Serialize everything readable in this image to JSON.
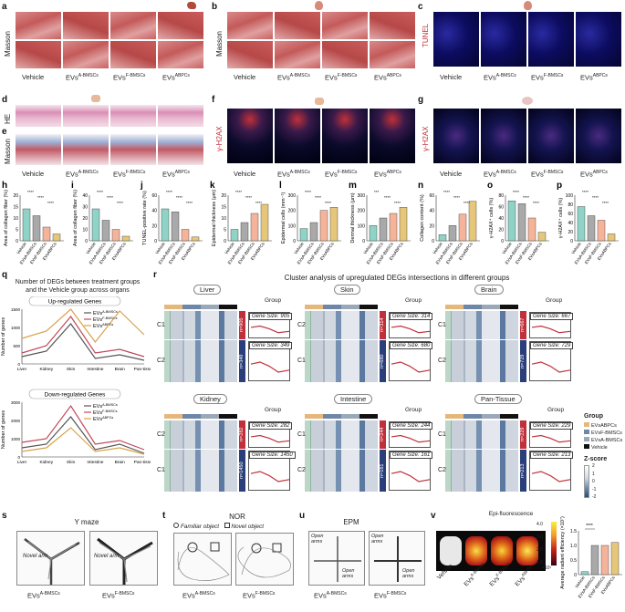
{
  "panels": {
    "a": "a",
    "b": "b",
    "c": "c",
    "d": "d",
    "e": "e",
    "f": "f",
    "g": "g",
    "h": "h",
    "i": "i",
    "j": "j",
    "k": "k",
    "l": "l",
    "m": "m",
    "n": "n",
    "o": "o",
    "p": "p",
    "q": "q",
    "r": "r",
    "s": "s",
    "t": "t",
    "u": "u",
    "v": "v"
  },
  "stain_labels": {
    "masson": "Masson",
    "tunel": "TUNEL",
    "he": "HE",
    "h2ax": "γ-H2AX"
  },
  "groups": [
    "Vehicle",
    "EVsA-BMSCs",
    "EVsF-BMSCs",
    "EVsABPCs"
  ],
  "group_display": [
    {
      "base": "Vehicle",
      "sup": ""
    },
    {
      "base": "EVs",
      "sup": "A-BMSCs"
    },
    {
      "base": "EVs",
      "sup": "F-BMSCs"
    },
    {
      "base": "EVs",
      "sup": "ABPCs"
    }
  ],
  "bar_panels": [
    {
      "id": "h",
      "ylabel": "Area of collagen fiber (%)",
      "values": [
        14,
        11,
        6,
        3
      ],
      "ymax": 20,
      "ticks": [
        "0",
        "5",
        "10",
        "15",
        "20"
      ],
      "sig": [
        "****",
        "****",
        "****"
      ]
    },
    {
      "id": "i",
      "ylabel": "Area of collagen fiber (%)",
      "values": [
        28,
        18,
        10,
        4
      ],
      "ymax": 40,
      "ticks": [
        "0",
        "10",
        "20",
        "30",
        "40"
      ],
      "sig": [
        "****",
        "****",
        "****"
      ]
    },
    {
      "id": "j",
      "ylabel": "TUNEL-positive rate (%)",
      "values": [
        42,
        38,
        15,
        5
      ],
      "ymax": 60,
      "ticks": [
        "0",
        "20",
        "40",
        "60"
      ],
      "sig": [
        "****",
        "****",
        "****"
      ]
    },
    {
      "id": "k",
      "ylabel": "Epidermal thickness (μm)",
      "values": [
        5,
        8,
        12,
        16
      ],
      "ymax": 20,
      "ticks": [
        "0",
        "5",
        "10",
        "15",
        "20"
      ],
      "sig": [
        "****",
        "****",
        "****"
      ]
    },
    {
      "id": "l",
      "ylabel": "Epidermal cells (mm⁻¹)",
      "values": [
        80,
        120,
        200,
        220
      ],
      "ymax": 300,
      "ticks": [
        "0",
        "100",
        "200",
        "300"
      ],
      "sig": [
        "****",
        "****",
        "****"
      ]
    },
    {
      "id": "m",
      "ylabel": "Dermal thickness (μm)",
      "values": [
        100,
        150,
        180,
        220
      ],
      "ymax": 300,
      "ticks": [
        "0",
        "100",
        "200",
        "300"
      ],
      "sig": [
        "***",
        "****",
        "****"
      ]
    },
    {
      "id": "n",
      "ylabel": "Collagen content (%)",
      "values": [
        8,
        20,
        35,
        52
      ],
      "ymax": 60,
      "ticks": [
        "0",
        "20",
        "40",
        "60"
      ],
      "sig": [
        "****",
        "****",
        "****"
      ]
    },
    {
      "id": "o",
      "ylabel": "γ-H2AX⁺ cells (%)",
      "values": [
        70,
        65,
        40,
        15
      ],
      "ymax": 80,
      "ticks": [
        "0",
        "20",
        "40",
        "60",
        "80"
      ],
      "sig": [
        "****",
        "****",
        "****"
      ]
    },
    {
      "id": "p",
      "ylabel": "γ-H2AX⁺ cells (%)",
      "values": [
        75,
        55,
        45,
        15
      ],
      "ymax": 100,
      "ticks": [
        "0",
        "20",
        "40",
        "60",
        "80",
        "100"
      ],
      "sig": [
        "****",
        "****",
        "****"
      ]
    }
  ],
  "bar_colors": [
    "#8fd3c7",
    "#a9a9a9",
    "#f5b49a",
    "#e6c77a"
  ],
  "q": {
    "title_line1": "Number of DEGs between treatment groups",
    "title_line2": "and the Vehicle group across organs",
    "up_title": "Up-regulated Genes",
    "down_title": "Down-regulated Genes",
    "ylabel": "Number of genes",
    "organs": [
      "Liver",
      "Kidney",
      "Skin",
      "Intestine",
      "Brain",
      "Pan-tissue"
    ],
    "up_ticks": [
      "0",
      "500",
      "1000",
      "1500"
    ],
    "down_ticks": [
      "0",
      "1000",
      "2000",
      "3000"
    ],
    "up_series": [
      {
        "name": "EVsA-BMSCs",
        "values": [
          200,
          350,
          1100,
          150,
          250,
          100
        ]
      },
      {
        "name": "EVsF-BMSCs",
        "values": [
          300,
          500,
          1300,
          300,
          400,
          200
        ]
      },
      {
        "name": "EVsABPCs",
        "values": [
          700,
          900,
          1500,
          600,
          1450,
          800
        ]
      }
    ],
    "down_series": [
      {
        "name": "EVsA-BMSCs",
        "values": [
          500,
          700,
          2200,
          400,
          700,
          200
        ]
      },
      {
        "name": "EVsF-BMSCs",
        "values": [
          800,
          1000,
          2800,
          700,
          900,
          400
        ]
      },
      {
        "name": "EVsABPCs",
        "values": [
          300,
          500,
          1600,
          300,
          500,
          150
        ]
      }
    ],
    "series_colors": [
      "#555555",
      "#c0485a",
      "#d9a24b"
    ],
    "legend_base": "EVs",
    "legend_sups": [
      "A-BMSCs",
      "F-BMSCs",
      "ABPCs"
    ]
  },
  "r": {
    "title": "Cluster analysis of upregulated DEGs intersections in different groups",
    "clusters": [
      {
        "organ": "Liver",
        "top_c": "C1",
        "bot_c": "C2",
        "top_gene": "Gene Size: 905",
        "bot_gene": "Gene Size: 349",
        "top_n": "n=905",
        "bot_n": "n=349"
      },
      {
        "organ": "Skin",
        "top_c": "C2",
        "bot_c": "C1",
        "top_gene": "Gene Size: 314",
        "bot_gene": "Gene Size: 680",
        "top_n": "n=314",
        "bot_n": "n=680"
      },
      {
        "organ": "Brain",
        "top_c": "C1",
        "bot_c": "C2",
        "top_gene": "Gene Size: 667",
        "bot_gene": "Gene Size: 729",
        "top_n": "n=667",
        "bot_n": "n=729"
      },
      {
        "organ": "Kidney",
        "top_c": "C2",
        "bot_c": "C1",
        "top_gene": "Gene Size: 282",
        "bot_gene": "Gene Size: 1450",
        "top_n": "n=282",
        "bot_n": "n=1450"
      },
      {
        "organ": "Intestine",
        "top_c": "C1",
        "bot_c": "C2",
        "top_gene": "Gene Size: 244",
        "bot_gene": "Gene Size: 161",
        "top_n": "n=244",
        "bot_n": "n=161"
      },
      {
        "organ": "Pan-Tissue",
        "top_c": "C1",
        "bot_c": "C2",
        "top_gene": "Gene Size: 229",
        "bot_gene": "Gene Size: 213",
        "top_n": "n=229",
        "bot_n": "n=213"
      }
    ],
    "legend_title": "Group",
    "legend_items": [
      "EVsABPCs",
      "EVsF-BMSCs",
      "EVsA-BMSCs",
      "Vehicle"
    ],
    "legend_colors": [
      "#e6b77a",
      "#6e86a8",
      "#9aa8b8",
      "#111111"
    ],
    "zscore_title": "Z-score",
    "zscore_ticks": [
      "2",
      "1",
      "0",
      "-1",
      "-2"
    ]
  },
  "s": {
    "title": "Y maze",
    "arm": "Novel arm",
    "captions": [
      {
        "base": "EVs",
        "sup": "A-BMSCs"
      },
      {
        "base": "EVs",
        "sup": "F-BMSCs"
      }
    ]
  },
  "t": {
    "title": "NOR",
    "familiar": "Familiar object",
    "novel": "Novel object",
    "captions": [
      {
        "base": "EVs",
        "sup": "A-BMSCs"
      },
      {
        "base": "EVs",
        "sup": "F-BMSCs"
      }
    ]
  },
  "u": {
    "title": "EPM",
    "open": "Open arms",
    "captions": [
      {
        "base": "EVs",
        "sup": "A-BMSCs"
      },
      {
        "base": "EVs",
        "sup": "F-BMSCs"
      }
    ]
  },
  "v": {
    "title": "Epi-fluorescence",
    "scale_ticks": [
      "4.0",
      "3.0",
      "2.0",
      "1.0"
    ],
    "scale_unit": "×10⁷",
    "ylabel": "Average radiant efficiency (×10⁷)",
    "values": [
      0.1,
      1.0,
      1.0,
      1.1
    ],
    "ymax": 1.5,
    "ticks": [
      "0",
      "0.5",
      "1.0",
      "1.5"
    ],
    "sig": "****",
    "captions": [
      {
        "base": "Vehicle",
        "sup": ""
      },
      {
        "base": "EVs",
        "sup": "A-BMSCs"
      },
      {
        "base": "EVs",
        "sup": "F-BMSCs"
      },
      {
        "base": "EVs",
        "sup": "ABPCs"
      }
    ]
  }
}
